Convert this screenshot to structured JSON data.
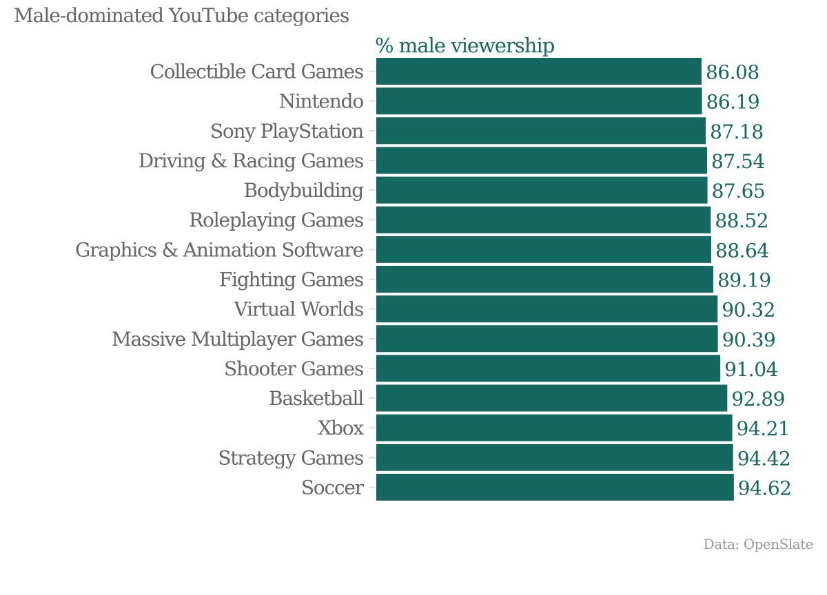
{
  "chart_data": {
    "type": "bar",
    "orientation": "horizontal",
    "title": "Male-dominated YouTube categories",
    "series_label": "% male viewership",
    "source": "Data: OpenSlate",
    "categories": [
      "Collectible Card Games",
      "Nintendo",
      "Sony PlayStation",
      "Driving & Racing Games",
      "Bodybuilding",
      "Roleplaying Games",
      "Graphics & Animation Software",
      "Fighting Games",
      "Virtual Worlds",
      "Massive Multiplayer Games",
      "Shooter Games",
      "Basketball",
      "Xbox",
      "Strategy Games",
      "Soccer"
    ],
    "values": [
      86.08,
      86.19,
      87.18,
      87.54,
      87.65,
      88.52,
      88.64,
      89.19,
      90.32,
      90.39,
      91.04,
      92.89,
      94.21,
      94.42,
      94.62
    ],
    "value_labels": [
      "86.08",
      "86.19",
      "87.18",
      "87.54",
      "87.65",
      "88.52",
      "88.64",
      "89.19",
      "90.32",
      "90.39",
      "91.04",
      "92.89",
      "94.21",
      "94.42",
      "94.62"
    ],
    "xlim": [
      0,
      100
    ],
    "grid": false,
    "bar_color": "#156860",
    "label_color": "#666666"
  }
}
